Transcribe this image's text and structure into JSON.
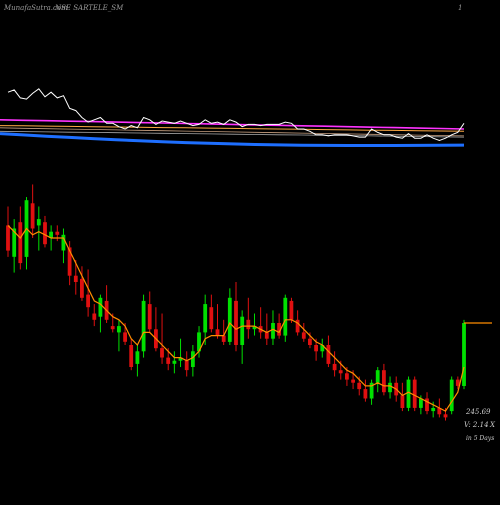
{
  "header": {
    "watermark": "MunafaSutra.com",
    "title": "NSE SARTELE_SM",
    "corner_label": "1"
  },
  "readout": {
    "price": "245.69",
    "volume": "V: 2.14",
    "volume_unit": "X",
    "period": "in 5 Days"
  },
  "colors": {
    "background": "#000000",
    "up_candle": "#00e000",
    "down_candle": "#e01010",
    "ema_short": "#ff8c00",
    "indicator_line": "#ffffff",
    "band_magenta": "#ff33ff",
    "band_orange": "#ffaa44",
    "band_blue": "#1e6fff",
    "band_sand": "#c8a080",
    "band_silver": "#aaaaaa"
  },
  "chart_data": {
    "type": "candlestick",
    "candles": [
      {
        "o": 2.0,
        "h": 2.6,
        "l": 1.0,
        "c": 1.2
      },
      {
        "o": 1.0,
        "h": 2.2,
        "l": 0.5,
        "c": 1.9
      },
      {
        "o": 2.1,
        "h": 2.6,
        "l": 0.6,
        "c": 0.8
      },
      {
        "o": 1.0,
        "h": 2.9,
        "l": 0.6,
        "c": 2.8
      },
      {
        "o": 2.7,
        "h": 3.3,
        "l": 1.6,
        "c": 1.9
      },
      {
        "o": 2.0,
        "h": 2.6,
        "l": 1.2,
        "c": 2.2
      },
      {
        "o": 2.1,
        "h": 2.3,
        "l": 1.3,
        "c": 1.4
      },
      {
        "o": 1.6,
        "h": 2.0,
        "l": 1.2,
        "c": 1.8
      },
      {
        "o": 1.8,
        "h": 2.0,
        "l": 1.5,
        "c": 1.7
      },
      {
        "o": 1.2,
        "h": 1.9,
        "l": 0.8,
        "c": 1.7
      },
      {
        "o": 1.3,
        "h": 1.5,
        "l": 0.1,
        "c": 0.4
      },
      {
        "o": 0.4,
        "h": 0.9,
        "l": -0.2,
        "c": 0.2
      },
      {
        "o": 0.3,
        "h": 0.7,
        "l": -0.4,
        "c": -0.3
      },
      {
        "o": -0.2,
        "h": 0.6,
        "l": -0.9,
        "c": -0.6
      },
      {
        "o": -0.8,
        "h": -0.5,
        "l": -1.2,
        "c": -1.0
      },
      {
        "o": -0.9,
        "h": -0.2,
        "l": -1.4,
        "c": -0.3
      },
      {
        "o": -0.4,
        "h": 0.1,
        "l": -1.1,
        "c": -1.0
      },
      {
        "o": -1.2,
        "h": -0.8,
        "l": -1.4,
        "c": -1.3
      },
      {
        "o": -1.4,
        "h": -1.0,
        "l": -2.0,
        "c": -1.2
      },
      {
        "o": -1.4,
        "h": -1.1,
        "l": -1.8,
        "c": -1.7
      },
      {
        "o": -1.8,
        "h": -1.6,
        "l": -2.6,
        "c": -2.5
      },
      {
        "o": -2.4,
        "h": -1.8,
        "l": -2.8,
        "c": -2.0
      },
      {
        "o": -2.0,
        "h": -0.2,
        "l": -2.2,
        "c": -0.4
      },
      {
        "o": -0.5,
        "h": -0.1,
        "l": -1.4,
        "c": -1.3
      },
      {
        "o": -1.3,
        "h": -0.6,
        "l": -2.0,
        "c": -1.9
      },
      {
        "o": -1.9,
        "h": -0.8,
        "l": -2.4,
        "c": -2.2
      },
      {
        "o": -2.2,
        "h": -1.9,
        "l": -2.6,
        "c": -2.4
      },
      {
        "o": -2.4,
        "h": -2.0,
        "l": -2.7,
        "c": -2.3
      },
      {
        "o": -2.3,
        "h": -1.6,
        "l": -2.5,
        "c": -2.2
      },
      {
        "o": -2.3,
        "h": -2.0,
        "l": -2.8,
        "c": -2.6
      },
      {
        "o": -2.5,
        "h": -1.8,
        "l": -2.8,
        "c": -2.0
      },
      {
        "o": -2.0,
        "h": -1.2,
        "l": -2.2,
        "c": -1.4
      },
      {
        "o": -1.4,
        "h": -0.2,
        "l": -1.8,
        "c": -0.5
      },
      {
        "o": -0.6,
        "h": -0.2,
        "l": -1.4,
        "c": -1.3
      },
      {
        "o": -1.3,
        "h": -0.5,
        "l": -1.6,
        "c": -1.5
      },
      {
        "o": -1.5,
        "h": -1.0,
        "l": -1.8,
        "c": -1.7
      },
      {
        "o": -1.7,
        "h": 0.0,
        "l": -1.8,
        "c": -0.3
      },
      {
        "o": -0.4,
        "h": 0.2,
        "l": -2.0,
        "c": -1.8
      },
      {
        "o": -1.8,
        "h": -0.7,
        "l": -2.4,
        "c": -0.9
      },
      {
        "o": -1.0,
        "h": -0.3,
        "l": -1.6,
        "c": -1.3
      },
      {
        "o": -1.3,
        "h": -0.8,
        "l": -1.5,
        "c": -1.2
      },
      {
        "o": -1.2,
        "h": -0.6,
        "l": -1.6,
        "c": -1.4
      },
      {
        "o": -1.4,
        "h": -0.8,
        "l": -1.8,
        "c": -1.6
      },
      {
        "o": -1.6,
        "h": -0.7,
        "l": -1.8,
        "c": -1.1
      },
      {
        "o": -1.1,
        "h": -0.8,
        "l": -1.6,
        "c": -1.5
      },
      {
        "o": -1.5,
        "h": -0.2,
        "l": -1.7,
        "c": -0.3
      },
      {
        "o": -0.4,
        "h": -0.3,
        "l": -1.1,
        "c": -1.0
      },
      {
        "o": -1.0,
        "h": -0.7,
        "l": -1.5,
        "c": -1.4
      },
      {
        "o": -1.4,
        "h": -1.1,
        "l": -1.7,
        "c": -1.6
      },
      {
        "o": -1.6,
        "h": -1.4,
        "l": -1.9,
        "c": -1.8
      },
      {
        "o": -1.8,
        "h": -1.6,
        "l": -2.3,
        "c": -2.0
      },
      {
        "o": -2.0,
        "h": -1.6,
        "l": -2.2,
        "c": -1.8
      },
      {
        "o": -1.8,
        "h": -1.5,
        "l": -2.5,
        "c": -2.4
      },
      {
        "o": -2.4,
        "h": -2.0,
        "l": -2.8,
        "c": -2.6
      },
      {
        "o": -2.6,
        "h": -2.3,
        "l": -2.9,
        "c": -2.7
      },
      {
        "o": -2.7,
        "h": -2.5,
        "l": -3.1,
        "c": -2.9
      },
      {
        "o": -2.9,
        "h": -2.6,
        "l": -3.2,
        "c": -3.0
      },
      {
        "o": -3.0,
        "h": -2.8,
        "l": -3.4,
        "c": -3.2
      },
      {
        "o": -3.2,
        "h": -2.9,
        "l": -3.6,
        "c": -3.5
      },
      {
        "o": -3.5,
        "h": -2.9,
        "l": -3.7,
        "c": -3.0
      },
      {
        "o": -3.0,
        "h": -2.5,
        "l": -3.3,
        "c": -2.6
      },
      {
        "o": -2.6,
        "h": -2.4,
        "l": -3.4,
        "c": -3.3
      },
      {
        "o": -3.3,
        "h": -2.8,
        "l": -3.5,
        "c": -3.0
      },
      {
        "o": -3.0,
        "h": -2.8,
        "l": -3.6,
        "c": -3.4
      },
      {
        "o": -3.4,
        "h": -3.0,
        "l": -3.9,
        "c": -3.8
      },
      {
        "o": -3.8,
        "h": -2.8,
        "l": -3.9,
        "c": -2.9
      },
      {
        "o": -2.9,
        "h": -2.8,
        "l": -3.9,
        "c": -3.8
      },
      {
        "o": -3.8,
        "h": -3.4,
        "l": -4.0,
        "c": -3.5
      },
      {
        "o": -3.5,
        "h": -3.3,
        "l": -4.0,
        "c": -3.9
      },
      {
        "o": -3.9,
        "h": -3.6,
        "l": -4.1,
        "c": -3.8
      },
      {
        "o": -3.8,
        "h": -3.5,
        "l": -4.1,
        "c": -4.0
      },
      {
        "o": -4.0,
        "h": -3.8,
        "l": -4.2,
        "c": -4.1
      },
      {
        "o": -3.9,
        "h": -2.8,
        "l": -4.0,
        "c": -2.9
      },
      {
        "o": -2.9,
        "h": -2.8,
        "l": -3.2,
        "c": -3.1
      },
      {
        "o": -3.1,
        "h": -1.0,
        "l": -3.2,
        "c": -1.1
      }
    ],
    "ema": [
      2.0,
      1.8,
      1.6,
      1.9,
      1.7,
      1.8,
      1.7,
      1.6,
      1.6,
      1.6,
      1.2,
      0.8,
      0.4,
      0.0,
      -0.4,
      -0.5,
      -0.7,
      -0.9,
      -1.0,
      -1.2,
      -1.6,
      -1.8,
      -1.4,
      -1.4,
      -1.6,
      -1.8,
      -2.0,
      -2.2,
      -2.2,
      -2.3,
      -2.2,
      -2.0,
      -1.6,
      -1.5,
      -1.5,
      -1.5,
      -1.1,
      -1.3,
      -1.2,
      -1.2,
      -1.2,
      -1.3,
      -1.4,
      -1.3,
      -1.4,
      -1.0,
      -1.0,
      -1.1,
      -1.3,
      -1.5,
      -1.7,
      -1.8,
      -2.0,
      -2.2,
      -2.4,
      -2.6,
      -2.7,
      -2.9,
      -3.1,
      -3.1,
      -3.0,
      -3.1,
      -3.1,
      -3.2,
      -3.4,
      -3.3,
      -3.4,
      -3.5,
      -3.6,
      -3.7,
      -3.8,
      -3.9,
      -3.6,
      -3.3,
      -2.5
    ],
    "indicator": [
      72,
      74,
      67,
      66,
      71,
      75,
      68,
      72,
      67,
      69,
      58,
      56,
      50,
      46,
      48,
      50,
      45,
      45,
      42,
      40,
      43,
      41,
      50,
      48,
      44,
      47,
      46,
      45,
      47,
      45,
      43,
      44,
      48,
      45,
      46,
      44,
      48,
      46,
      42,
      44,
      44,
      43,
      44,
      44,
      44,
      46,
      45,
      40,
      40,
      38,
      35,
      35,
      34,
      35,
      35,
      35,
      34,
      33,
      33,
      40,
      37,
      35,
      35,
      33,
      32,
      36,
      32,
      32,
      35,
      32,
      30,
      32,
      35,
      37,
      45
    ],
    "bands": {
      "magenta": [
        48,
        40
      ],
      "orange": [
        43,
        38
      ],
      "sand": [
        41,
        34
      ],
      "silver": [
        38,
        33
      ],
      "blue": [
        36,
        26
      ]
    },
    "last_close": -1.1,
    "ylim": [
      -4.5,
      3.6
    ],
    "indicator_ylim": [
      0,
      100
    ]
  }
}
